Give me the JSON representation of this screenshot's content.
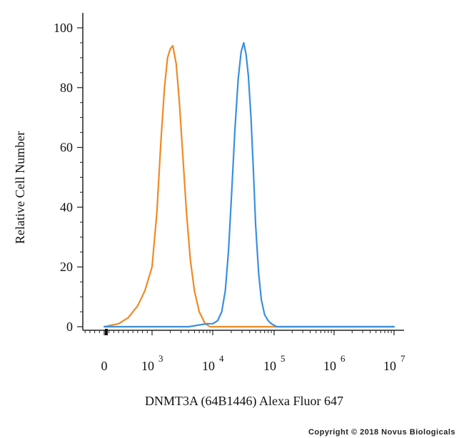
{
  "chart_data": {
    "type": "line",
    "xlabel": "DNMT3A (64B1446) Alexa Fluor 647",
    "ylabel": "Relative Cell Number",
    "x_scale": "biexponential",
    "ylim": [
      0,
      100
    ],
    "y_ticks": [
      0,
      20,
      40,
      60,
      80,
      100
    ],
    "x_ticks": [
      {
        "label": "0",
        "value": 0
      },
      {
        "label": "10",
        "exp": "3",
        "value": 1000
      },
      {
        "label": "10",
        "exp": "4",
        "value": 10000
      },
      {
        "label": "10",
        "exp": "5",
        "value": 100000
      },
      {
        "label": "10",
        "exp": "6",
        "value": 1000000
      },
      {
        "label": "10",
        "exp": "7",
        "value": 10000000
      }
    ],
    "series": [
      {
        "color": "#f08a24",
        "x": [
          0,
          300,
          500,
          700,
          850,
          1000,
          1200,
          1400,
          1600,
          1800,
          2000,
          2200,
          2500,
          2800,
          3200,
          3700,
          4300,
          5000,
          6000,
          7500,
          9000,
          11000,
          13000,
          20000,
          50000,
          100000,
          1000000,
          10000000
        ],
        "y": [
          0,
          1,
          3,
          7,
          12,
          20,
          38,
          62,
          80,
          90,
          93,
          94,
          88,
          76,
          58,
          38,
          22,
          12,
          5,
          1,
          0,
          0,
          0,
          0,
          0,
          0,
          0,
          0
        ]
      },
      {
        "color": "#3a8fe0",
        "x": [
          0,
          2000,
          4000,
          8000,
          10000,
          12000,
          14000,
          16000,
          18000,
          20000,
          23000,
          26000,
          29000,
          32000,
          35000,
          38000,
          42000,
          46000,
          50000,
          56000,
          62000,
          70000,
          80000,
          90000,
          110000,
          150000,
          1000000,
          10000000
        ],
        "y": [
          0,
          0,
          0,
          1,
          1,
          2,
          5,
          12,
          25,
          42,
          66,
          83,
          92,
          95,
          91,
          84,
          70,
          52,
          34,
          18,
          9,
          4,
          2,
          1,
          0,
          0,
          0,
          0
        ]
      }
    ]
  },
  "copyright": "Copyright © 2018 Novus Biologicals"
}
